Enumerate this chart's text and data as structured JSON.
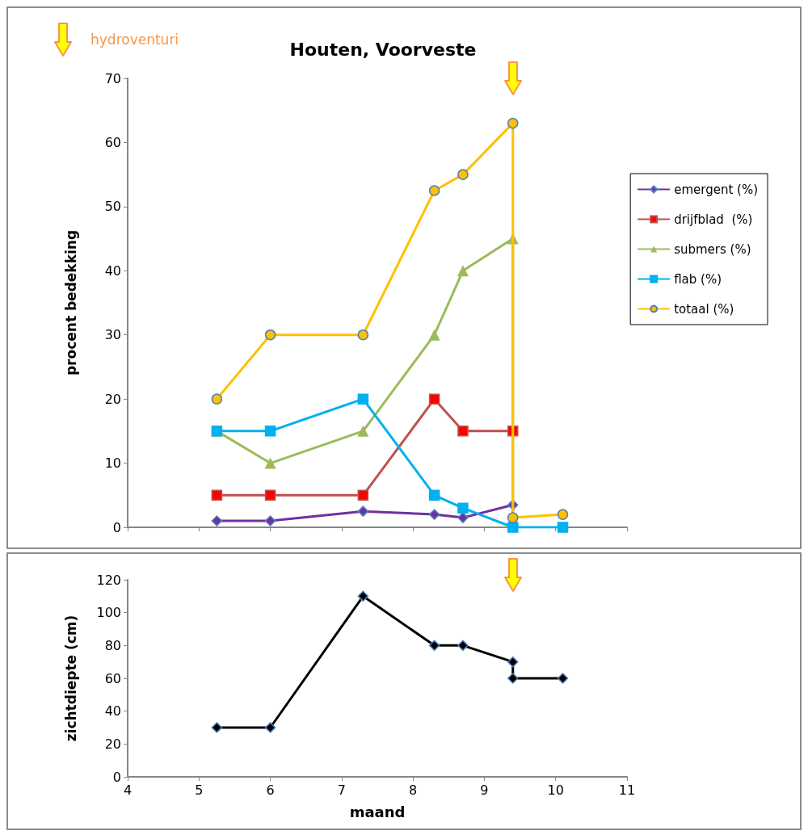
{
  "chart_data": [
    {
      "type": "line",
      "title": "Houten, Voorveste",
      "ylabel": "procent bedekking",
      "annotations": [
        "hydroventuri"
      ],
      "xlim": [
        4,
        11
      ],
      "xticks": [
        4,
        5,
        6,
        7,
        8,
        9,
        10,
        11
      ],
      "ylim": [
        0,
        70
      ],
      "yticks": [
        0,
        10,
        20,
        30,
        40,
        50,
        60,
        70
      ],
      "tick_labels": "y",
      "grid": false,
      "legend": "right",
      "series": [
        {
          "name": "emergent (%)",
          "color": "#7030a0",
          "marker": "diamond",
          "x": [
            5.25,
            6,
            7.3,
            8.3,
            8.7,
            9.4,
            9.4
          ],
          "values": [
            1,
            1,
            2.5,
            2,
            1.5,
            3.5,
            0.3
          ]
        },
        {
          "name": "drijfblad  (%)",
          "color": "#c0504d",
          "marker": "square",
          "x": [
            5.25,
            6,
            7.3,
            8.3,
            8.7,
            9.4
          ],
          "values": [
            5,
            5,
            5,
            20,
            15,
            15
          ]
        },
        {
          "name": "submers (%)",
          "color": "#9bbb59",
          "marker": "triangle",
          "x": [
            5.25,
            6,
            7.3,
            8.3,
            8.7,
            9.4,
            9.4
          ],
          "values": [
            15,
            10,
            15,
            30,
            40,
            45,
            1
          ]
        },
        {
          "name": "flab (%)",
          "color": "#00b0f0",
          "marker": "square",
          "x": [
            5.25,
            6,
            7.3,
            8.3,
            8.7,
            9.4,
            10.1
          ],
          "values": [
            15,
            15,
            20,
            5,
            3,
            0,
            0
          ]
        },
        {
          "name": "totaal (%)",
          "color": "#ffc000",
          "marker": "circle",
          "x": [
            5.25,
            6,
            7.3,
            8.3,
            8.7,
            9.4,
            9.4,
            10.1
          ],
          "values": [
            20,
            30,
            30,
            52.5,
            55,
            63,
            1.5,
            2
          ]
        }
      ]
    },
    {
      "type": "line",
      "xlabel": "maand",
      "ylabel": "zichtdiepte (cm)",
      "xlim": [
        4,
        11
      ],
      "xticks": [
        4,
        5,
        6,
        7,
        8,
        9,
        10,
        11
      ],
      "ylim": [
        0,
        120
      ],
      "yticks": [
        0,
        20,
        40,
        60,
        80,
        100,
        120
      ],
      "grid": false,
      "series": [
        {
          "color": "#000000",
          "marker": "diamond",
          "x": [
            5.25,
            6,
            7.3,
            8.3,
            8.7,
            9.4,
            9.4,
            10.1
          ],
          "values": [
            30,
            30,
            110,
            80,
            80,
            70,
            60,
            60
          ]
        }
      ]
    }
  ]
}
